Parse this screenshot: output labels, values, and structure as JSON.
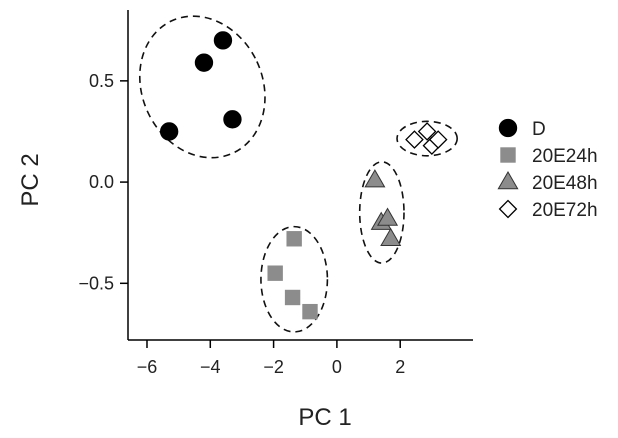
{
  "chart_data": {
    "type": "scatter",
    "xlabel": "PC 1",
    "ylabel": "PC 2",
    "xlim": [
      -6.6,
      4.3
    ],
    "ylim": [
      -0.78,
      0.85
    ],
    "xticks": [
      -6,
      -4,
      -2,
      0,
      2
    ],
    "yticks": [
      -0.5,
      0.0,
      0.5
    ],
    "ytick_labels": [
      "−0.5",
      "0.0",
      "0.5"
    ],
    "xtick_labels": [
      "−6",
      "−4",
      "−2",
      "0",
      "2"
    ],
    "legend_position": "right",
    "grid": false,
    "series": [
      {
        "name": "D",
        "marker": "filled-circle",
        "color": "#000000",
        "points": [
          {
            "x": -3.6,
            "y": 0.7
          },
          {
            "x": -4.2,
            "y": 0.59
          },
          {
            "x": -3.3,
            "y": 0.31
          },
          {
            "x": -5.3,
            "y": 0.25
          }
        ],
        "ellipse": {
          "cx": -4.25,
          "cy": 0.47,
          "rx": 1.9,
          "ry": 0.36,
          "angle": -25
        }
      },
      {
        "name": "20E24h",
        "marker": "filled-square",
        "color": "#8c8c8c",
        "points": [
          {
            "x": -1.35,
            "y": -0.28
          },
          {
            "x": -1.95,
            "y": -0.45
          },
          {
            "x": -1.4,
            "y": -0.57
          },
          {
            "x": -0.85,
            "y": -0.64
          }
        ],
        "ellipse": {
          "cx": -1.35,
          "cy": -0.48,
          "rx": 1.05,
          "ry": 0.26,
          "angle": 0
        }
      },
      {
        "name": "20E48h",
        "marker": "filled-triangle",
        "color": "#8c8c8c",
        "points": [
          {
            "x": 1.2,
            "y": 0.01
          },
          {
            "x": 1.4,
            "y": -0.2
          },
          {
            "x": 1.6,
            "y": -0.18
          },
          {
            "x": 1.7,
            "y": -0.28
          }
        ],
        "ellipse": {
          "cx": 1.42,
          "cy": -0.15,
          "rx": 0.7,
          "ry": 0.25,
          "angle": 0
        }
      },
      {
        "name": "20E72h",
        "marker": "open-diamond",
        "color": "#000000",
        "points": [
          {
            "x": 2.45,
            "y": 0.21
          },
          {
            "x": 2.85,
            "y": 0.25
          },
          {
            "x": 3.0,
            "y": 0.18
          },
          {
            "x": 3.2,
            "y": 0.21
          }
        ],
        "ellipse": {
          "cx": 2.85,
          "cy": 0.215,
          "rx": 0.95,
          "ry": 0.085,
          "angle": 0
        }
      }
    ]
  }
}
